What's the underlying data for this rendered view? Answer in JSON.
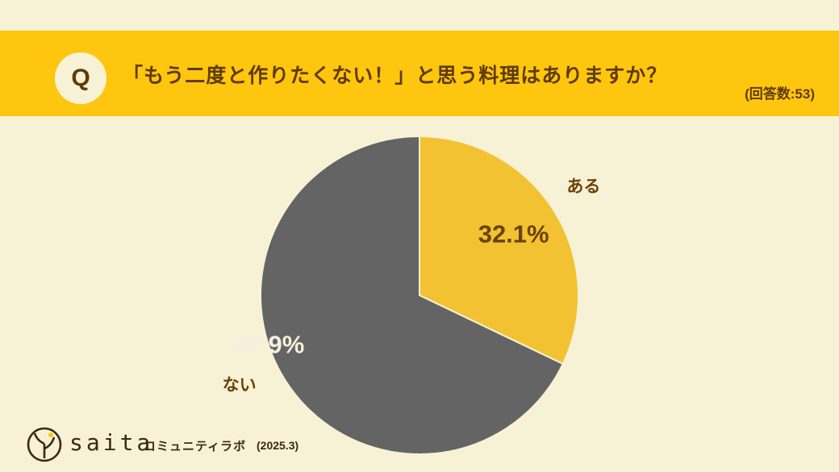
{
  "header": {
    "q_badge": "Q",
    "question": "「もう二度と作りたくない！」と思う料理はありますか？",
    "respondents": "(回答数:53)"
  },
  "chart_data": {
    "type": "pie",
    "categories": [
      "ある",
      "ない"
    ],
    "values": [
      32.1,
      67.9
    ],
    "value_labels": [
      "32.1%",
      "67.9%"
    ],
    "colors": [
      "#f2c232",
      "#646464"
    ],
    "label_colors": [
      "#6b4206",
      "#f4f0e0"
    ],
    "category_color": "#6b4206"
  },
  "footer": {
    "brand": "saita",
    "lab": "コミュニティラボ",
    "date": "(2025.3)"
  }
}
